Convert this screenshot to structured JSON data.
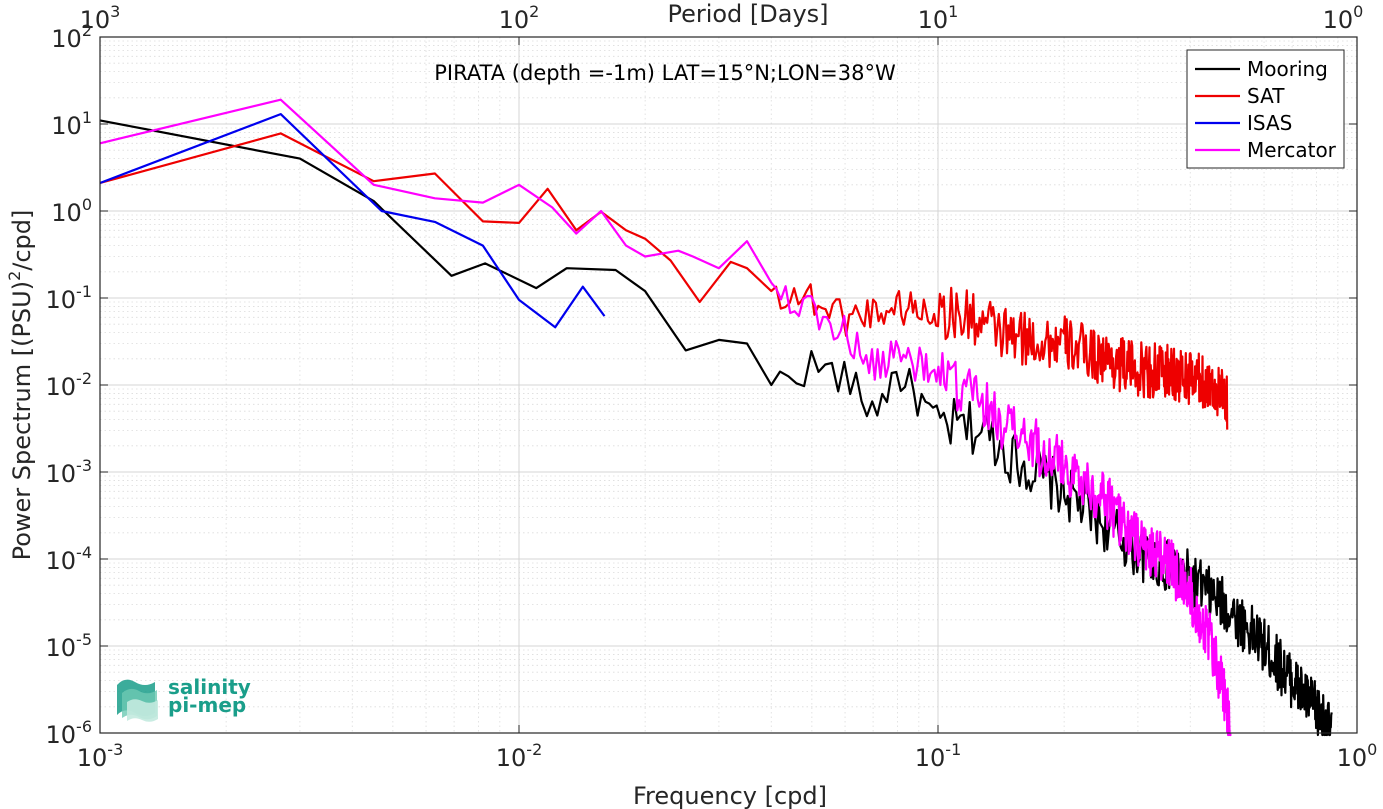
{
  "chart_data": {
    "type": "line",
    "title": "PIRATA (depth =-1m) LAT=15°N;LON=38°W",
    "xlabel": "Frequency [cpd]",
    "ylabel_main": "Power Spectrum [(PSU)",
    "ylabel_sup": "2",
    "ylabel_tail": "/cpd]",
    "top_axis_label": "Period [Days]",
    "x_scale": "log",
    "y_scale": "log",
    "xlim": [
      0.001,
      1
    ],
    "ylim": [
      1e-06,
      100
    ],
    "grid": true,
    "legend_position": "top-right",
    "x_ticks": [
      {
        "base": "10",
        "exp": "-3",
        "value": 0.001
      },
      {
        "base": "10",
        "exp": "-2",
        "value": 0.01
      },
      {
        "base": "10",
        "exp": "-1",
        "value": 0.1
      },
      {
        "base": "10",
        "exp": "0",
        "value": 1
      }
    ],
    "y_ticks": [
      {
        "base": "10",
        "exp": "-6",
        "value": 1e-06
      },
      {
        "base": "10",
        "exp": "-5",
        "value": 1e-05
      },
      {
        "base": "10",
        "exp": "-4",
        "value": 0.0001
      },
      {
        "base": "10",
        "exp": "-3",
        "value": 0.001
      },
      {
        "base": "10",
        "exp": "-2",
        "value": 0.01
      },
      {
        "base": "10",
        "exp": "-1",
        "value": 0.1
      },
      {
        "base": "10",
        "exp": "0",
        "value": 1
      },
      {
        "base": "10",
        "exp": "1",
        "value": 10
      },
      {
        "base": "10",
        "exp": "2",
        "value": 100
      }
    ],
    "top_ticks": [
      {
        "base": "10",
        "exp": "3",
        "value": 0.001
      },
      {
        "base": "10",
        "exp": "2",
        "value": 0.01
      },
      {
        "base": "10",
        "exp": "1",
        "value": 0.1
      },
      {
        "base": "10",
        "exp": "0",
        "value": 1
      }
    ],
    "series": [
      {
        "name": "Mooring",
        "color": "#000000",
        "shape": "cascade",
        "anchors": [
          [
            0.001,
            11
          ],
          [
            0.003,
            4
          ],
          [
            0.0045,
            1.3
          ],
          [
            0.0069,
            0.18
          ],
          [
            0.0083,
            0.25
          ],
          [
            0.011,
            0.13
          ],
          [
            0.013,
            0.22
          ],
          [
            0.017,
            0.21
          ],
          [
            0.02,
            0.12
          ],
          [
            0.025,
            0.025
          ],
          [
            0.03,
            0.033
          ],
          [
            0.035,
            0.03
          ],
          [
            0.04,
            0.01
          ],
          [
            0.05,
            0.017
          ],
          [
            0.06,
            0.012
          ],
          [
            0.07,
            0.005
          ],
          [
            0.08,
            0.014
          ],
          [
            0.1,
            0.0035
          ],
          [
            0.13,
            0.003
          ],
          [
            0.15,
            0.0015
          ],
          [
            0.2,
            0.0006
          ],
          [
            0.25,
            0.00025
          ],
          [
            0.3,
            0.00012
          ],
          [
            0.4,
            6e-05
          ],
          [
            0.5,
            2.5e-05
          ],
          [
            0.6,
            1e-05
          ],
          [
            0.7,
            4e-06
          ],
          [
            0.8,
            1.8e-06
          ],
          [
            0.87,
            1e-06
          ]
        ]
      },
      {
        "name": "SAT",
        "color": "#ee0000",
        "shape": "cascade",
        "anchors": [
          [
            0.001,
            2.1
          ],
          [
            0.0027,
            7.8
          ],
          [
            0.0045,
            2.2
          ],
          [
            0.0063,
            2.7
          ],
          [
            0.0082,
            0.76
          ],
          [
            0.01,
            0.73
          ],
          [
            0.0117,
            1.8
          ],
          [
            0.0137,
            0.6
          ],
          [
            0.0157,
            0.98
          ],
          [
            0.018,
            0.6
          ],
          [
            0.02,
            0.48
          ],
          [
            0.023,
            0.27
          ],
          [
            0.027,
            0.09
          ],
          [
            0.032,
            0.26
          ],
          [
            0.035,
            0.22
          ],
          [
            0.04,
            0.12
          ],
          [
            0.05,
            0.1
          ],
          [
            0.06,
            0.06
          ],
          [
            0.08,
            0.08
          ],
          [
            0.1,
            0.07
          ],
          [
            0.12,
            0.06
          ],
          [
            0.15,
            0.035
          ],
          [
            0.2,
            0.03
          ],
          [
            0.25,
            0.02
          ],
          [
            0.3,
            0.015
          ],
          [
            0.35,
            0.014
          ],
          [
            0.4,
            0.012
          ],
          [
            0.45,
            0.01
          ],
          [
            0.49,
            0.006
          ]
        ]
      },
      {
        "name": "ISAS",
        "color": "#0000ee",
        "shape": "smooth",
        "anchors": [
          [
            0.001,
            2.1
          ],
          [
            0.0027,
            13
          ],
          [
            0.0047,
            1.0
          ],
          [
            0.0063,
            0.75
          ],
          [
            0.0082,
            0.4
          ],
          [
            0.01,
            0.095
          ],
          [
            0.0122,
            0.046
          ],
          [
            0.0142,
            0.135
          ],
          [
            0.016,
            0.062
          ]
        ]
      },
      {
        "name": "Mercator",
        "color": "#ff00ff",
        "shape": "cascade",
        "anchors": [
          [
            0.001,
            6
          ],
          [
            0.0027,
            19
          ],
          [
            0.0045,
            2.0
          ],
          [
            0.0063,
            1.4
          ],
          [
            0.0082,
            1.25
          ],
          [
            0.01,
            2.0
          ],
          [
            0.012,
            1.1
          ],
          [
            0.0137,
            0.55
          ],
          [
            0.0157,
            1.0
          ],
          [
            0.018,
            0.4
          ],
          [
            0.02,
            0.3
          ],
          [
            0.024,
            0.35
          ],
          [
            0.026,
            0.3
          ],
          [
            0.03,
            0.22
          ],
          [
            0.035,
            0.45
          ],
          [
            0.04,
            0.15
          ],
          [
            0.05,
            0.07
          ],
          [
            0.06,
            0.04
          ],
          [
            0.07,
            0.015
          ],
          [
            0.08,
            0.025
          ],
          [
            0.1,
            0.012
          ],
          [
            0.12,
            0.008
          ],
          [
            0.15,
            0.003
          ],
          [
            0.2,
            0.0012
          ],
          [
            0.25,
            0.0005
          ],
          [
            0.3,
            0.00015
          ],
          [
            0.35,
            0.0001
          ],
          [
            0.4,
            4e-05
          ],
          [
            0.45,
            1e-05
          ],
          [
            0.48,
            3e-06
          ],
          [
            0.5,
            1e-06
          ]
        ]
      }
    ]
  },
  "legend": {
    "items": [
      {
        "label": "Mooring",
        "color": "#000000"
      },
      {
        "label": "SAT",
        "color": "#ee0000"
      },
      {
        "label": "ISAS",
        "color": "#0000ee"
      },
      {
        "label": "Mercator",
        "color": "#ff00ff"
      }
    ]
  },
  "logo": {
    "line1": "salinity",
    "line2": "pi-mep",
    "color": "#1a9e8a"
  }
}
